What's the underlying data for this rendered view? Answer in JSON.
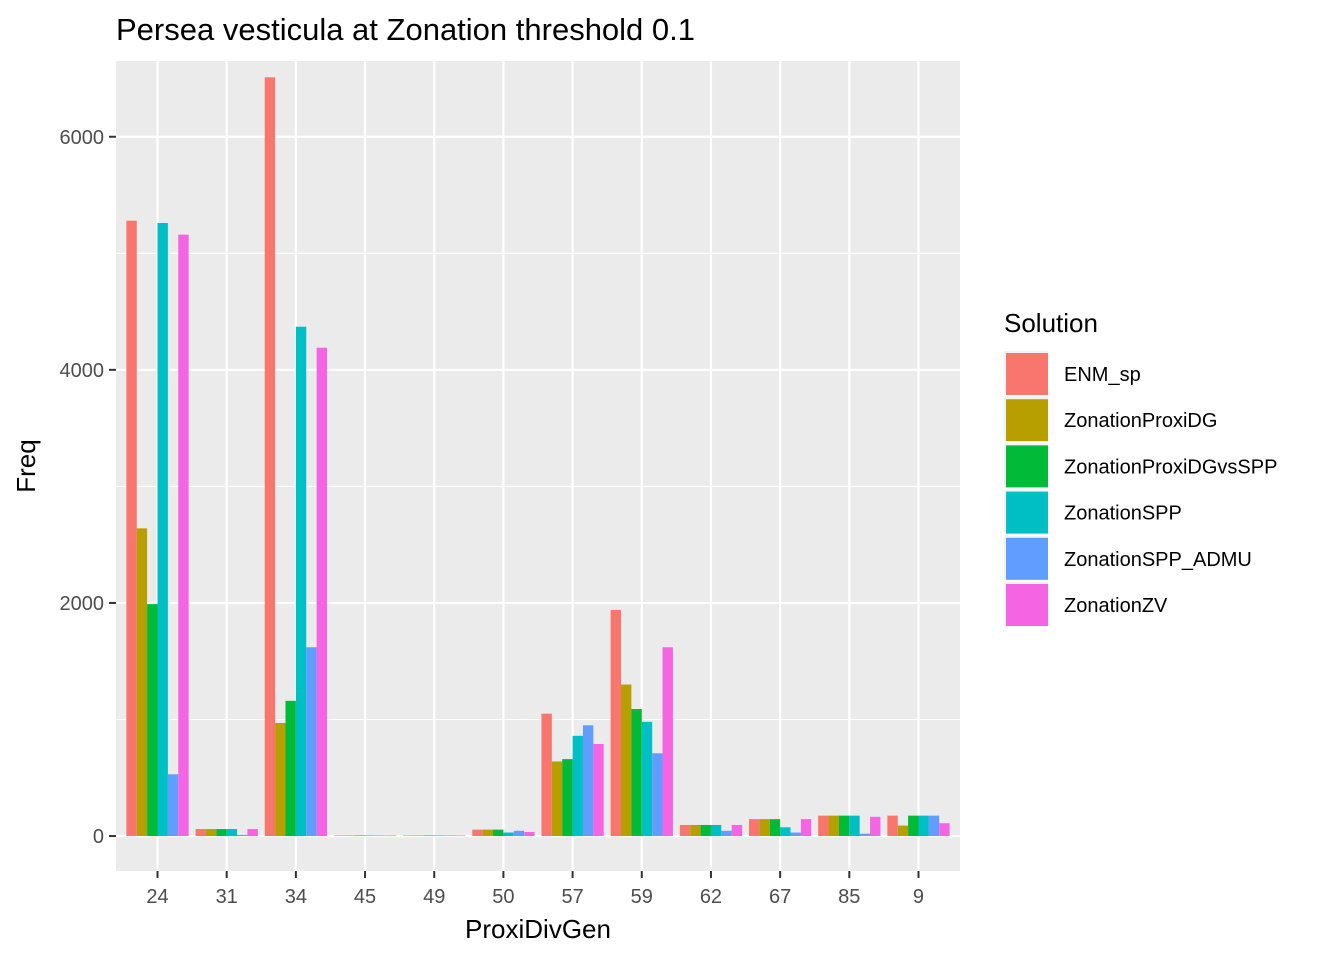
{
  "chart_data": {
    "type": "bar",
    "title": "Persea vesticula at Zonation threshold 0.1",
    "xlabel": "ProxiDivGen",
    "ylabel": "Freq",
    "ylim": [
      -300,
      6650
    ],
    "yticks": [
      0,
      2000,
      4000,
      6000
    ],
    "grid": true,
    "legend_position": "right",
    "legend_title": "Solution",
    "categories": [
      "24",
      "31",
      "34",
      "45",
      "49",
      "50",
      "57",
      "59",
      "62",
      "67",
      "85",
      "9"
    ],
    "series": [
      {
        "name": "ENM_sp",
        "color": "#F8766D",
        "values": [
          5280,
          60,
          6510,
          5,
          5,
          55,
          1050,
          1940,
          95,
          145,
          175,
          175
        ]
      },
      {
        "name": "ZonationProxiDG",
        "color": "#B79F00",
        "values": [
          2640,
          60,
          970,
          5,
          5,
          55,
          640,
          1300,
          95,
          145,
          175,
          90
        ]
      },
      {
        "name": "ZonationProxiDGvsSPP",
        "color": "#00BA38",
        "values": [
          1990,
          60,
          1160,
          5,
          5,
          55,
          660,
          1090,
          95,
          145,
          175,
          175
        ]
      },
      {
        "name": "ZonationSPP",
        "color": "#00BFC4",
        "values": [
          5260,
          60,
          4370,
          5,
          5,
          30,
          860,
          980,
          95,
          75,
          175,
          175
        ]
      },
      {
        "name": "ZonationSPP_ADMU",
        "color": "#619CFF",
        "values": [
          530,
          10,
          1620,
          5,
          5,
          45,
          950,
          710,
          45,
          30,
          20,
          175
        ]
      },
      {
        "name": "ZonationZV",
        "color": "#F564E3",
        "values": [
          5160,
          60,
          4190,
          5,
          5,
          35,
          790,
          1620,
          95,
          145,
          165,
          110
        ]
      }
    ]
  }
}
